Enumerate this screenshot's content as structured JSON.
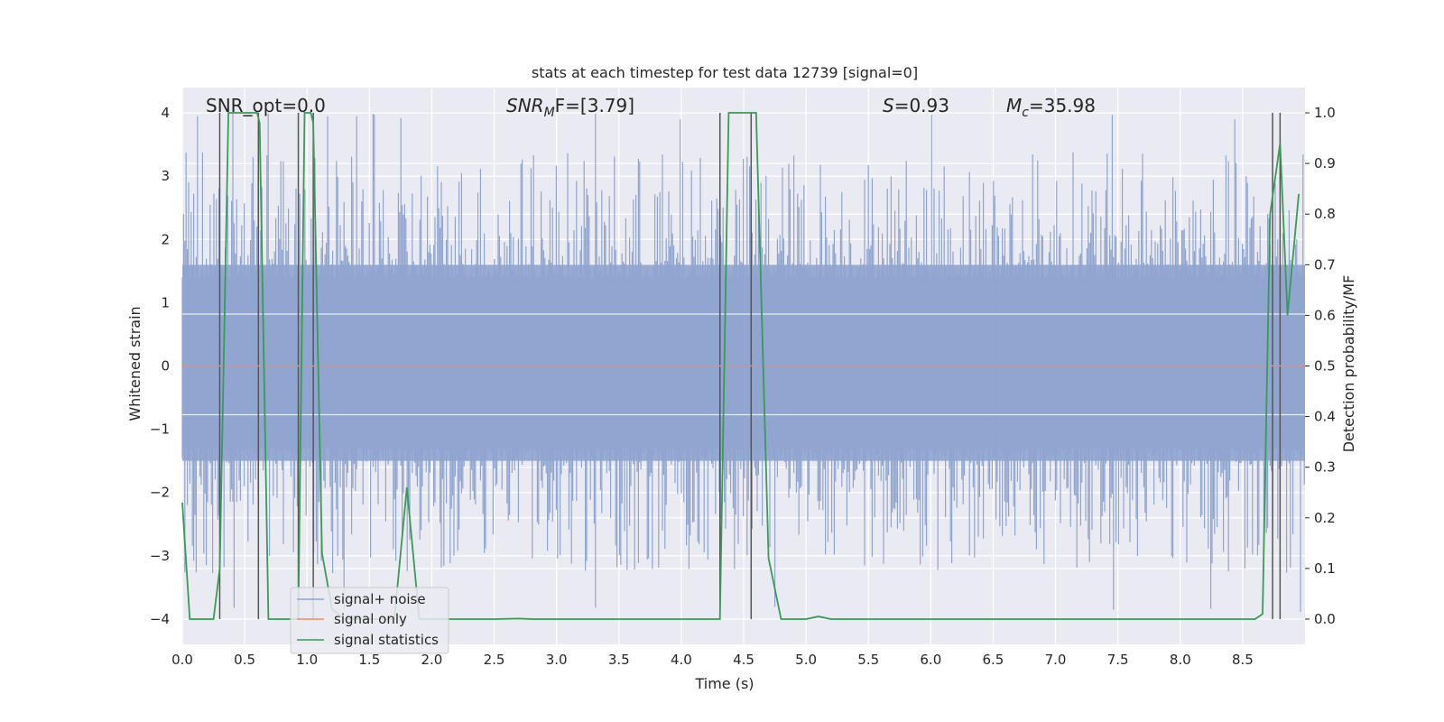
{
  "chart_data": {
    "type": "line",
    "title": "stats at each timestep for test data 12739 [signal=0]",
    "xlabel": "Time (s)",
    "ylabel": "Whitened strain",
    "y2label": "Detection probability/MF",
    "xlim": [
      0.0,
      9.0
    ],
    "ylim": [
      -4.4,
      4.4
    ],
    "y2lim": [
      -0.05,
      1.05
    ],
    "x_ticks": [
      "0.0",
      "0.5",
      "1.0",
      "1.5",
      "2.0",
      "2.5",
      "3.0",
      "3.5",
      "4.0",
      "4.5",
      "5.0",
      "5.5",
      "6.0",
      "6.5",
      "7.0",
      "7.5",
      "8.0",
      "8.5"
    ],
    "y_ticks": [
      "-4",
      "-3",
      "-2",
      "-1",
      "0",
      "1",
      "2",
      "3",
      "4"
    ],
    "y2_ticks": [
      "0.0",
      "0.1",
      "0.2",
      "0.3",
      "0.4",
      "0.5",
      "0.6",
      "0.7",
      "0.8",
      "0.9",
      "1.0"
    ],
    "grid": true,
    "legend_position": "lower-left",
    "annotations": [
      {
        "id": "snr_opt",
        "text": "SNR_opt=0.0"
      },
      {
        "id": "snr_mf",
        "base": "SNR",
        "sub": "M",
        "rest": "F=[3.79]"
      },
      {
        "id": "s_stat",
        "italic": "S",
        "rest": "=0.93"
      },
      {
        "id": "mc",
        "base": "M",
        "sub": "c",
        "rest": "=35.98"
      }
    ],
    "series": [
      {
        "name": "signal+ noise",
        "color": "#8fa4cf",
        "kind": "noise_band",
        "core_band": [
          -1.5,
          1.6
        ],
        "peak_range": [
          -3.9,
          4.0
        ]
      },
      {
        "name": "signal only",
        "color": "#e58e6f",
        "x": [
          0.0,
          9.0
        ],
        "y": [
          0.0,
          0.0
        ]
      },
      {
        "name": "signal statistics",
        "color": "#3a9a56",
        "axis": "right",
        "x": [
          0.0,
          0.06,
          0.25,
          0.3,
          0.37,
          0.6,
          0.62,
          0.69,
          0.93,
          0.98,
          1.03,
          1.05,
          1.12,
          1.2,
          1.3,
          1.5,
          1.7,
          1.8,
          1.9,
          2.0,
          2.5,
          2.7,
          2.8,
          3.5,
          4.31,
          4.38,
          4.44,
          4.6,
          4.7,
          4.8,
          5.0,
          5.1,
          5.2,
          5.5,
          8.6,
          8.66,
          8.72,
          8.8,
          8.86,
          8.95
        ],
        "y": [
          0.23,
          0.0,
          0.0,
          0.1,
          1.0,
          1.0,
          0.98,
          0.0,
          0.0,
          1.0,
          1.0,
          0.98,
          0.13,
          0.02,
          0.0,
          0.0,
          0.0,
          0.26,
          0.0,
          0.0,
          0.0,
          0.001,
          0.0,
          0.0,
          0.0,
          1.0,
          1.0,
          1.0,
          0.12,
          0.0,
          0.0,
          0.005,
          0.0,
          0.0,
          0.0,
          0.01,
          0.8,
          0.94,
          0.6,
          0.84
        ]
      }
    ],
    "vertical_lines_x": [
      0.3,
      0.61,
      0.93,
      1.05,
      4.31,
      4.56,
      8.74,
      8.8
    ]
  },
  "legend": {
    "items": [
      {
        "label": "signal+ noise",
        "color": "#8fa4cf"
      },
      {
        "label": "signal only",
        "color": "#e58e6f"
      },
      {
        "label": "signal statistics",
        "color": "#3a9a56"
      }
    ]
  },
  "colors": {
    "plot_background": "#eaeaf2",
    "grid": "#ffffff",
    "vertical_line": "#555555"
  }
}
